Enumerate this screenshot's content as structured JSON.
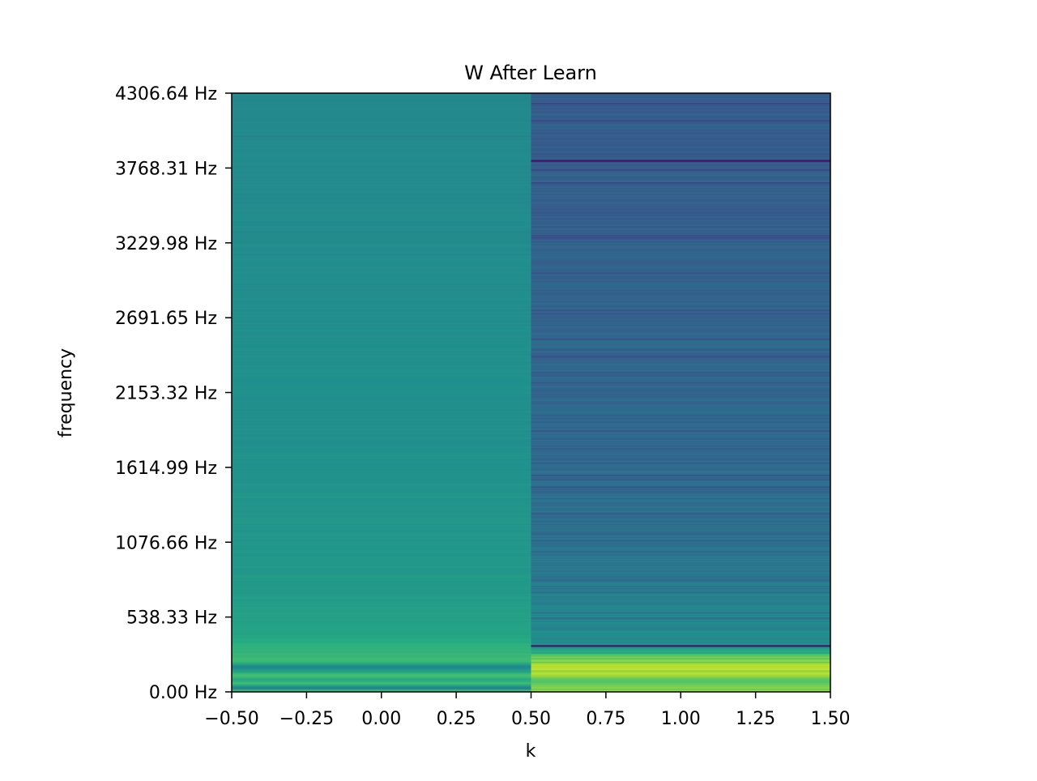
{
  "chart_data": {
    "type": "heatmap",
    "title": "W After Learn",
    "xlabel": "k",
    "ylabel": "frequency",
    "xlim": [
      -0.5,
      1.5
    ],
    "x_ticks": [
      -0.5,
      -0.25,
      0.0,
      0.25,
      0.5,
      0.75,
      1.0,
      1.25,
      1.5
    ],
    "x_tick_labels": [
      "−0.50",
      "−0.25",
      "0.00",
      "0.25",
      "0.50",
      "0.75",
      "1.00",
      "1.25",
      "1.50"
    ],
    "y_ticks_hz": [
      0.0,
      538.33,
      1076.66,
      1614.99,
      2153.32,
      2691.65,
      3229.98,
      3768.31,
      4306.64
    ],
    "y_tick_labels": [
      "0.00 Hz",
      "538.33 Hz",
      "1076.66 Hz",
      "1614.99 Hz",
      "2153.32 Hz",
      "2691.65 Hz",
      "3229.98 Hz",
      "3768.31 Hz",
      "4306.64 Hz"
    ],
    "ylim_hz": [
      0.0,
      4306.64
    ],
    "colormap": "viridis",
    "columns": [
      {
        "k": 0,
        "profile": [
          {
            "hz": 0,
            "level": 0.85
          },
          {
            "hz": 30,
            "level": 0.42
          },
          {
            "hz": 60,
            "level": 0.7
          },
          {
            "hz": 90,
            "level": 0.6
          },
          {
            "hz": 120,
            "level": 0.72
          },
          {
            "hz": 150,
            "level": 0.58
          },
          {
            "hz": 180,
            "level": 0.45
          },
          {
            "hz": 220,
            "level": 0.68
          },
          {
            "hz": 300,
            "level": 0.66
          },
          {
            "hz": 400,
            "level": 0.6
          },
          {
            "hz": 540,
            "level": 0.57
          },
          {
            "hz": 800,
            "level": 0.54
          },
          {
            "hz": 1100,
            "level": 0.53
          },
          {
            "hz": 1600,
            "level": 0.51
          },
          {
            "hz": 2200,
            "level": 0.5
          },
          {
            "hz": 3000,
            "level": 0.49
          },
          {
            "hz": 4306.64,
            "level": 0.47
          }
        ]
      },
      {
        "k": 1,
        "profile": [
          {
            "hz": 0,
            "level": 0.88
          },
          {
            "hz": 40,
            "level": 0.82
          },
          {
            "hz": 90,
            "level": 0.72
          },
          {
            "hz": 120,
            "level": 0.86
          },
          {
            "hz": 180,
            "level": 0.9
          },
          {
            "hz": 250,
            "level": 0.78
          },
          {
            "hz": 300,
            "level": 0.58
          },
          {
            "hz": 330,
            "level": 0.5
          },
          {
            "hz": 420,
            "level": 0.48
          },
          {
            "hz": 600,
            "level": 0.45
          },
          {
            "hz": 900,
            "level": 0.4
          },
          {
            "hz": 1500,
            "level": 0.36
          },
          {
            "hz": 2500,
            "level": 0.33
          },
          {
            "hz": 3500,
            "level": 0.31
          },
          {
            "hz": 4306.64,
            "level": 0.3
          }
        ],
        "dark_lines_hz": [
          3820,
          330
        ]
      }
    ]
  }
}
